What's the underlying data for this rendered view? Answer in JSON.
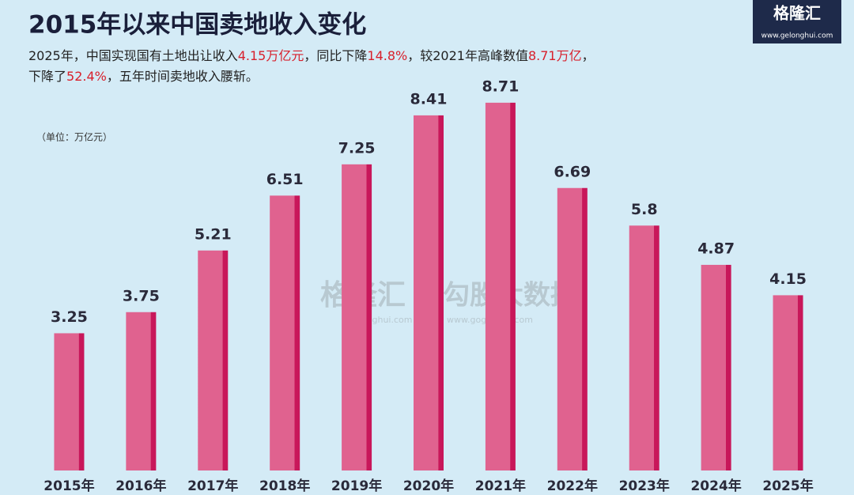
{
  "chart_data": {
    "type": "bar",
    "title": "2015年以来中国卖地收入变化",
    "subtitle": [
      [
        {
          "text": "2025年，中国实现国有土地出让收入",
          "highlight": false
        },
        {
          "text": "4.15万亿元",
          "highlight": true
        },
        {
          "text": "，同比下降",
          "highlight": false
        },
        {
          "text": "14.8%",
          "highlight": true
        },
        {
          "text": "，较2021年高峰数值",
          "highlight": false
        },
        {
          "text": "8.71万亿",
          "highlight": true
        },
        {
          "text": "，",
          "highlight": false
        }
      ],
      [
        {
          "text": "下降了",
          "highlight": false
        },
        {
          "text": "52.4%",
          "highlight": true
        },
        {
          "text": "，五年时间卖地收入腰斩。",
          "highlight": false
        }
      ]
    ],
    "unit_label": "（单位：万亿元）",
    "categories": [
      "2015年",
      "2016年",
      "2017年",
      "2018年",
      "2019年",
      "2020年",
      "2021年",
      "2022年",
      "2023年",
      "2024年",
      "2025年"
    ],
    "values": [
      3.25,
      3.75,
      5.21,
      6.51,
      7.25,
      8.41,
      8.71,
      6.69,
      5.8,
      4.87,
      4.15
    ],
    "color": "#e0628f",
    "ylim": [
      0,
      10
    ]
  },
  "branding": {
    "logo": "格隆汇",
    "logo_url": "www.gelonghui.com",
    "watermark_left": "格隆汇",
    "watermark_left_url": "gelonghui.com",
    "watermark_right": "勾股大数据",
    "watermark_right_url": "www.gogudata.com"
  }
}
